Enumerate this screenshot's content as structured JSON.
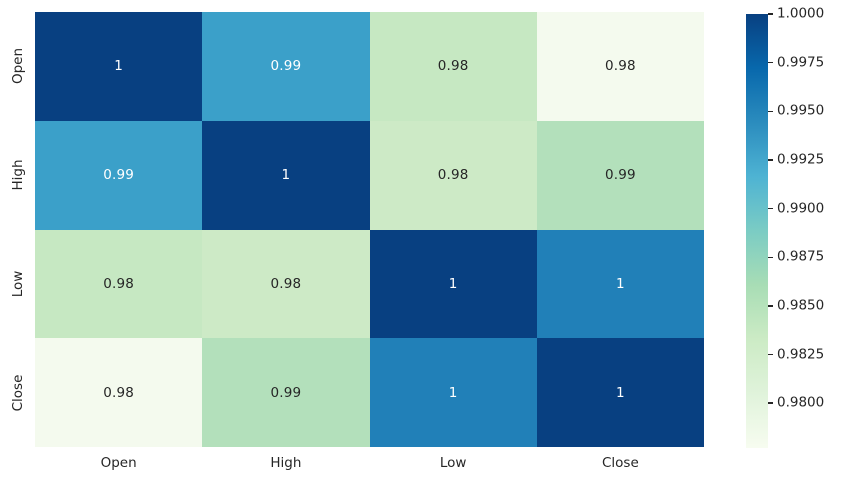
{
  "figure": {
    "background": "#ffffff",
    "axis_text_color": "#262626"
  },
  "chart_data": {
    "type": "heatmap",
    "title": "",
    "description": "Correlation matrix heatmap of OHLC price columns",
    "categories": [
      "Open",
      "High",
      "Low",
      "Close"
    ],
    "x_tick_labels": [
      "Open",
      "High",
      "Low",
      "Close"
    ],
    "y_tick_labels": [
      "Open",
      "High",
      "Low",
      "Close"
    ],
    "matrix_display": [
      [
        "1",
        "0.99",
        "0.98",
        "0.98"
      ],
      [
        "0.99",
        "1",
        "0.98",
        "0.99"
      ],
      [
        "0.98",
        "0.98",
        "1",
        "1"
      ],
      [
        "0.98",
        "0.99",
        "1",
        "1"
      ]
    ],
    "matrix_values": [
      [
        1.0,
        0.993,
        0.984,
        0.978
      ],
      [
        0.993,
        1.0,
        0.983,
        0.986
      ],
      [
        0.984,
        0.983,
        1.0,
        0.996
      ],
      [
        0.978,
        0.986,
        0.996,
        1.0
      ]
    ],
    "cell_colors": [
      [
        "#084081",
        "#3ba0c9",
        "#c6e8c2",
        "#f4faee"
      ],
      [
        "#3ba0c9",
        "#084081",
        "#cdeac6",
        "#b3e0bb"
      ],
      [
        "#c6e8c2",
        "#cdeac6",
        "#084081",
        "#2180b8"
      ],
      [
        "#f4faee",
        "#b3e0bb",
        "#2180b8",
        "#084081"
      ]
    ],
    "annot_colors": [
      [
        "#ffffff",
        "#ffffff",
        "#262626",
        "#262626"
      ],
      [
        "#ffffff",
        "#ffffff",
        "#262626",
        "#262626"
      ],
      [
        "#262626",
        "#262626",
        "#ffffff",
        "#ffffff"
      ],
      [
        "#262626",
        "#262626",
        "#ffffff",
        "#ffffff"
      ]
    ],
    "colormap": "GnBu",
    "legend_position": "right",
    "grid": false,
    "colorbar": {
      "vmin": 0.9777,
      "vmax": 1.0,
      "gradient_stops_top_to_bottom": [
        "#084081",
        "#0868ac",
        "#2b8cbe",
        "#4eb3d3",
        "#7bccc4",
        "#a8ddb5",
        "#ccebc5",
        "#e0f3db",
        "#f7fcf0"
      ],
      "ticks": [
        {
          "label": "1.0000",
          "value": 1.0
        },
        {
          "label": "0.9975",
          "value": 0.9975
        },
        {
          "label": "0.9950",
          "value": 0.995
        },
        {
          "label": "0.9925",
          "value": 0.9925
        },
        {
          "label": "0.9900",
          "value": 0.99
        },
        {
          "label": "0.9875",
          "value": 0.9875
        },
        {
          "label": "0.9850",
          "value": 0.985
        },
        {
          "label": "0.9825",
          "value": 0.9825
        },
        {
          "label": "0.9800",
          "value": 0.98
        }
      ]
    }
  }
}
